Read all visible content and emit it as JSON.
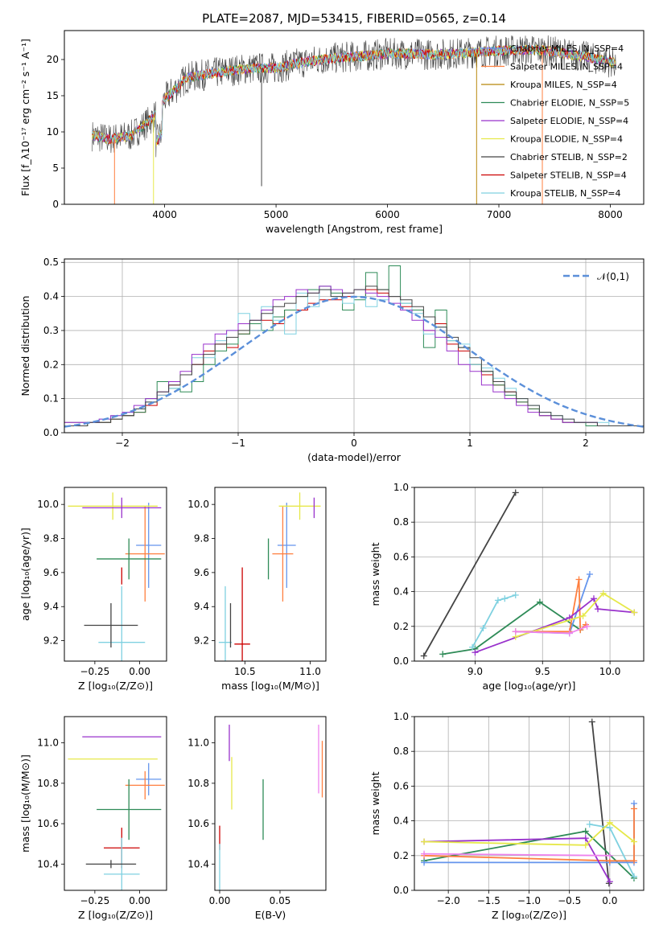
{
  "figure_title": "PLATE=2087, MJD=53415, FIBERID=0565, z=0.14",
  "colors": [
    "#6b8e23",
    "#3a6ea5"
  ],
  "chart_data": [
    {
      "id": "spectrum",
      "type": "line",
      "title": "PLATE=2087, MJD=53415, FIBERID=0565, z=0.14",
      "xlabel": "wavelength [Angstrom, rest frame]",
      "ylabel": "Flux [f_λ10⁻¹⁷ erg cm⁻² s⁻¹ A⁻¹]",
      "xlim": [
        3100,
        8300
      ],
      "ylim": [
        0,
        24
      ],
      "xticks": [
        4000,
        5000,
        6000,
        7000,
        8000
      ],
      "yticks": [
        0,
        5,
        10,
        15,
        20
      ],
      "grid": false,
      "legend_position": "top-right",
      "continuum_x": [
        3350,
        3500,
        3700,
        3900,
        4000,
        4200,
        4400,
        4600,
        4800,
        5000,
        5200,
        5400,
        5600,
        5800,
        6000,
        6200,
        6400,
        6600,
        6800,
        7000,
        7200,
        7400,
        7600,
        7800,
        8050
      ],
      "continuum_y": [
        9.5,
        9.0,
        9.5,
        12,
        14.5,
        17.5,
        18,
        18.5,
        18.8,
        18.8,
        19.5,
        20,
        20.3,
        20.5,
        20.8,
        20.8,
        20.7,
        20.8,
        21.0,
        21.2,
        21.3,
        21.3,
        20.8,
        20.3,
        19.5
      ],
      "series": [
        {
          "name": "Chabrier MILES, N_SSP=4",
          "color": "#6495ed"
        },
        {
          "name": "Salpeter MILES, N_SSP=4",
          "color": "#ff7f3f"
        },
        {
          "name": "Kroupa MILES, N_SSP=4",
          "color": "#b8860b"
        },
        {
          "name": "Chabrier ELODIE, N_SSP=5",
          "color": "#2e8b57"
        },
        {
          "name": "Salpeter ELODIE, N_SSP=4",
          "color": "#9932cc"
        },
        {
          "name": "Kroupa ELODIE, N_SSP=4",
          "color": "#e6e84a"
        },
        {
          "name": "Chabrier STELIB, N_SSP=2",
          "color": "#444444"
        },
        {
          "name": "Salpeter STELIB, N_SSP=4",
          "color": "#cc0000"
        },
        {
          "name": "Kroupa STELIB, N_SSP=4",
          "color": "#7fd1e0"
        }
      ]
    },
    {
      "id": "residuals",
      "type": "bar",
      "xlabel": "(data-model)/error",
      "ylabel": "Normed distribution",
      "xlim": [
        -2.5,
        2.5
      ],
      "ylim": [
        0,
        0.51
      ],
      "xticks": [
        -2,
        -1,
        0,
        1,
        2
      ],
      "yticks": [
        0.0,
        0.1,
        0.2,
        0.3,
        0.4,
        0.5
      ],
      "grid": true,
      "legend": "𝒩(0,1)",
      "legend_position": "top-right",
      "gaussian": {
        "mean": 0,
        "sigma": 1,
        "color": "#5b8fd9"
      },
      "bin_width": 0.1,
      "histograms": [
        {
          "color": "#cc0000",
          "values": [
            0.03,
            0.03,
            0.03,
            0.03,
            0.04,
            0.05,
            0.06,
            0.08,
            0.11,
            0.14,
            0.17,
            0.2,
            0.24,
            0.26,
            0.25,
            0.29,
            0.3,
            0.33,
            0.32,
            0.36,
            0.36,
            0.38,
            0.39,
            0.39,
            0.4,
            0.4,
            0.42,
            0.41,
            0.4,
            0.37,
            0.36,
            0.3,
            0.32,
            0.26,
            0.24,
            0.2,
            0.17,
            0.14,
            0.12,
            0.09,
            0.07,
            0.05,
            0.04,
            0.03,
            0.03,
            0.02,
            0.02,
            0.02,
            0.02,
            0.02
          ]
        },
        {
          "color": "#2e8b57",
          "values": [
            0.02,
            0.02,
            0.03,
            0.03,
            0.04,
            0.05,
            0.06,
            0.1,
            0.15,
            0.13,
            0.12,
            0.15,
            0.2,
            0.24,
            0.26,
            0.29,
            0.32,
            0.3,
            0.34,
            0.36,
            0.4,
            0.42,
            0.43,
            0.41,
            0.36,
            0.39,
            0.47,
            0.42,
            0.49,
            0.38,
            0.36,
            0.25,
            0.36,
            0.27,
            0.25,
            0.2,
            0.18,
            0.14,
            0.11,
            0.09,
            0.07,
            0.05,
            0.04,
            0.03,
            0.03,
            0.02,
            0.02,
            0.02,
            0.02,
            0.02
          ]
        },
        {
          "color": "#7fd1e0",
          "values": [
            0.03,
            0.03,
            0.03,
            0.04,
            0.05,
            0.06,
            0.07,
            0.09,
            0.11,
            0.13,
            0.17,
            0.22,
            0.22,
            0.27,
            0.3,
            0.35,
            0.3,
            0.37,
            0.33,
            0.29,
            0.41,
            0.37,
            0.42,
            0.4,
            0.38,
            0.4,
            0.37,
            0.39,
            0.4,
            0.38,
            0.35,
            0.29,
            0.31,
            0.27,
            0.26,
            0.2,
            0.19,
            0.16,
            0.13,
            0.1,
            0.08,
            0.06,
            0.05,
            0.04,
            0.03,
            0.03,
            0.03,
            0.02,
            0.02,
            0.02
          ]
        },
        {
          "color": "#9932cc",
          "values": [
            0.03,
            0.03,
            0.03,
            0.04,
            0.05,
            0.06,
            0.08,
            0.1,
            0.12,
            0.15,
            0.18,
            0.23,
            0.26,
            0.29,
            0.3,
            0.32,
            0.33,
            0.36,
            0.39,
            0.4,
            0.42,
            0.41,
            0.43,
            0.42,
            0.41,
            0.42,
            0.41,
            0.4,
            0.38,
            0.36,
            0.33,
            0.3,
            0.28,
            0.24,
            0.2,
            0.18,
            0.14,
            0.12,
            0.1,
            0.08,
            0.06,
            0.05,
            0.04,
            0.03,
            0.03,
            0.03,
            0.02,
            0.02,
            0.02,
            0.02
          ]
        },
        {
          "color": "#444444",
          "values": [
            0.02,
            0.02,
            0.03,
            0.03,
            0.04,
            0.05,
            0.07,
            0.09,
            0.12,
            0.14,
            0.17,
            0.2,
            0.23,
            0.26,
            0.28,
            0.3,
            0.33,
            0.35,
            0.37,
            0.38,
            0.4,
            0.41,
            0.42,
            0.4,
            0.41,
            0.42,
            0.43,
            0.42,
            0.4,
            0.39,
            0.37,
            0.34,
            0.31,
            0.28,
            0.25,
            0.22,
            0.18,
            0.15,
            0.12,
            0.1,
            0.08,
            0.06,
            0.05,
            0.04,
            0.03,
            0.03,
            0.02,
            0.02,
            0.02,
            0.02
          ]
        }
      ]
    },
    {
      "id": "age-vs-z",
      "type": "scatter",
      "xlabel": "Z [log₁₀(Z/Z⊙)]",
      "ylabel": "age  [log₁₀(age/yr)]",
      "xlim": [
        -0.42,
        0.15
      ],
      "ylim": [
        9.08,
        10.1
      ],
      "xticks": [
        -0.25,
        0.0
      ],
      "yticks": [
        9.2,
        9.4,
        9.6,
        9.8,
        10.0
      ],
      "grid": false,
      "errorbars": [
        {
          "color": "#6495ed",
          "x": 0.05,
          "y": 9.76,
          "xerr": 0.07,
          "yerr": 0.25
        },
        {
          "color": "#ff7f3f",
          "x": 0.03,
          "y": 9.71,
          "xerr": 0.11,
          "yerr": 0.28
        },
        {
          "color": "#e6e84a",
          "x": -0.15,
          "y": 9.99,
          "xerr": 0.25,
          "yerr": 0.08
        },
        {
          "color": "#9932cc",
          "x": -0.1,
          "y": 9.98,
          "xerr": 0.22,
          "yerr": 0.06
        },
        {
          "color": "#2e8b57",
          "x": -0.06,
          "y": 9.68,
          "xerr": 0.18,
          "yerr": 0.12
        },
        {
          "color": "#cc0000",
          "x": -0.1,
          "y": 9.58,
          "xerr": 0.0,
          "yerr": 0.05
        },
        {
          "color": "#7fd1e0",
          "x": -0.1,
          "y": 9.19,
          "xerr": 0.13,
          "yerr": 0.33
        },
        {
          "color": "#444444",
          "x": -0.16,
          "y": 9.29,
          "xerr": 0.15,
          "yerr": 0.13
        }
      ]
    },
    {
      "id": "age-vs-mass",
      "type": "scatter",
      "xlabel": "mass [log₁₀(M/M⊙)]",
      "ylabel": "",
      "xlim": [
        10.27,
        11.12
      ],
      "ylim": [
        9.08,
        10.1
      ],
      "xticks": [
        10.5,
        11.0
      ],
      "yticks": [
        9.2,
        9.4,
        9.6,
        9.8,
        10.0
      ],
      "grid": false,
      "errorbars": [
        {
          "color": "#6495ed",
          "x": 10.82,
          "y": 9.76,
          "xerr": 0.07,
          "yerr": 0.25
        },
        {
          "color": "#ff7f3f",
          "x": 10.79,
          "y": 9.71,
          "xerr": 0.08,
          "yerr": 0.28
        },
        {
          "color": "#e6e84a",
          "x": 10.92,
          "y": 9.99,
          "xerr": 0.16,
          "yerr": 0.08
        },
        {
          "color": "#9932cc",
          "x": 11.03,
          "y": 9.98,
          "xerr": 0.0,
          "yerr": 0.06
        },
        {
          "color": "#2e8b57",
          "x": 10.68,
          "y": 9.68,
          "xerr": 0.0,
          "yerr": 0.12
        },
        {
          "color": "#cc0000",
          "x": 10.48,
          "y": 9.18,
          "xerr": 0.06,
          "yerr": 0.45
        },
        {
          "color": "#7fd1e0",
          "x": 10.35,
          "y": 9.19,
          "xerr": 0.05,
          "yerr": 0.33
        },
        {
          "color": "#444444",
          "x": 10.39,
          "y": 9.29,
          "xerr": 0.0,
          "yerr": 0.13
        }
      ]
    },
    {
      "id": "weight-vs-age",
      "type": "line",
      "xlabel": "age  [log₁₀(age/yr)]",
      "ylabel": "mass weight",
      "xlim": [
        8.55,
        10.25
      ],
      "ylim": [
        0,
        1.0
      ],
      "xticks": [
        9.0,
        9.5,
        10.0
      ],
      "yticks": [
        0.0,
        0.2,
        0.4,
        0.6,
        0.8,
        1.0
      ],
      "grid": true,
      "series": [
        {
          "color": "#444444",
          "x": [
            8.62,
            9.3
          ],
          "y": [
            0.03,
            0.97
          ]
        },
        {
          "color": "#2e8b57",
          "x": [
            8.76,
            9.0,
            9.48,
            9.78
          ],
          "y": [
            0.04,
            0.07,
            0.34,
            0.18
          ]
        },
        {
          "color": "#7fd1e0",
          "x": [
            8.98,
            9.06,
            9.17,
            9.22,
            9.3
          ],
          "y": [
            0.08,
            0.19,
            0.35,
            0.36,
            0.38
          ]
        },
        {
          "color": "#6495ed",
          "x": [
            9.3,
            9.7,
            9.85
          ],
          "y": [
            0.17,
            0.16,
            0.5
          ]
        },
        {
          "color": "#ff7f3f",
          "x": [
            9.3,
            9.7,
            9.77,
            9.78,
            9.82
          ],
          "y": [
            0.17,
            0.17,
            0.47,
            0.18,
            0.21
          ]
        },
        {
          "color": "#9932cc",
          "x": [
            9.0,
            9.7,
            9.88,
            9.91,
            10.18
          ],
          "y": [
            0.05,
            0.25,
            0.36,
            0.3,
            0.28
          ]
        },
        {
          "color": "#e6e84a",
          "x": [
            9.3,
            9.8,
            9.95,
            10.18
          ],
          "y": [
            0.14,
            0.26,
            0.39,
            0.28
          ]
        },
        {
          "color": "#ee82ee",
          "x": [
            9.3,
            9.7,
            9.83
          ],
          "y": [
            0.17,
            0.16,
            0.2
          ]
        }
      ]
    },
    {
      "id": "mass-vs-z",
      "type": "scatter",
      "xlabel": "Z [log₁₀(Z/Z⊙)]",
      "ylabel": "mass [log₁₀(M/M⊙)]",
      "xlim": [
        -0.42,
        0.15
      ],
      "ylim": [
        10.27,
        11.13
      ],
      "xticks": [
        -0.25,
        0.0
      ],
      "yticks": [
        10.4,
        10.6,
        10.8,
        11.0
      ],
      "grid": false,
      "errorbars": [
        {
          "color": "#6495ed",
          "x": 0.05,
          "y": 10.82,
          "xerr": 0.07,
          "yerr": 0.08
        },
        {
          "color": "#ff7f3f",
          "x": 0.03,
          "y": 10.79,
          "xerr": 0.11,
          "yerr": 0.07
        },
        {
          "color": "#e6e84a",
          "x": -0.15,
          "y": 10.92,
          "xerr": 0.25,
          "yerr": 0.0
        },
        {
          "color": "#9932cc",
          "x": -0.1,
          "y": 11.03,
          "xerr": 0.22,
          "yerr": 0.0
        },
        {
          "color": "#2e8b57",
          "x": -0.06,
          "y": 10.67,
          "xerr": 0.18,
          "yerr": 0.15
        },
        {
          "color": "#cc0000",
          "x": -0.1,
          "y": 10.48,
          "xerr": 0.1,
          "yerr": 0.1
        },
        {
          "color": "#7fd1e0",
          "x": -0.1,
          "y": 10.35,
          "xerr": 0.1,
          "yerr": 0.18
        },
        {
          "color": "#444444",
          "x": -0.16,
          "y": 10.4,
          "xerr": 0.14,
          "yerr": 0.02
        }
      ]
    },
    {
      "id": "mass-vs-ebv",
      "type": "scatter",
      "xlabel": "E(B-V)",
      "ylabel": "",
      "xlim": [
        -0.004,
        0.088
      ],
      "ylim": [
        10.27,
        11.13
      ],
      "xticks": [
        0.0,
        0.05
      ],
      "yticks": [
        10.4,
        10.6,
        10.8,
        11.0
      ],
      "grid": false,
      "errorbars": [
        {
          "color": "#9932cc",
          "x": 0.008,
          "y": 11.0,
          "xerr": 0,
          "yerr": 0.09
        },
        {
          "color": "#e6e84a",
          "x": 0.01,
          "y": 10.8,
          "xerr": 0,
          "yerr": 0.13
        },
        {
          "color": "#2e8b57",
          "x": 0.036,
          "y": 10.67,
          "xerr": 0,
          "yerr": 0.15
        },
        {
          "color": "#cc0000",
          "x": 0.0,
          "y": 10.53,
          "xerr": 0,
          "yerr": 0.06
        },
        {
          "color": "#7fd1e0",
          "x": 0.0,
          "y": 10.38,
          "xerr": 0,
          "yerr": 0.12
        },
        {
          "color": "#ff7f3f",
          "x": 0.085,
          "y": 10.87,
          "xerr": 0,
          "yerr": 0.14
        },
        {
          "color": "#ee82ee",
          "x": 0.082,
          "y": 10.92,
          "xerr": 0,
          "yerr": 0.17
        }
      ]
    },
    {
      "id": "weight-vs-z",
      "type": "line",
      "xlabel": "Z [log₁₀(Z/Z⊙)]",
      "ylabel": "mass weight",
      "xlim": [
        -2.42,
        0.42
      ],
      "ylim": [
        0,
        1.0
      ],
      "xticks": [
        -2.0,
        -1.5,
        -1.0,
        -0.5,
        0.0
      ],
      "yticks": [
        0.0,
        0.2,
        0.4,
        0.6,
        0.8,
        1.0
      ],
      "grid": true,
      "series": [
        {
          "color": "#444444",
          "x": [
            -0.22,
            -0.01
          ],
          "y": [
            0.97,
            0.04
          ]
        },
        {
          "color": "#2e8b57",
          "x": [
            -2.3,
            -0.3,
            0.3
          ],
          "y": [
            0.17,
            0.34,
            0.07
          ]
        },
        {
          "color": "#7fd1e0",
          "x": [
            -0.25,
            0.0,
            0.3
          ],
          "y": [
            0.38,
            0.36,
            0.08
          ]
        },
        {
          "color": "#6495ed",
          "x": [
            -2.3,
            0.0,
            0.3,
            0.3
          ],
          "y": [
            0.16,
            0.16,
            0.16,
            0.5
          ]
        },
        {
          "color": "#ff7f3f",
          "x": [
            -2.3,
            0.0,
            0.3,
            0.3
          ],
          "y": [
            0.2,
            0.17,
            0.17,
            0.47
          ]
        },
        {
          "color": "#9932cc",
          "x": [
            -2.3,
            -0.3,
            0.0
          ],
          "y": [
            0.28,
            0.3,
            0.05
          ]
        },
        {
          "color": "#e6e84a",
          "x": [
            -2.3,
            -0.3,
            0.0,
            0.3
          ],
          "y": [
            0.28,
            0.26,
            0.39,
            0.28
          ]
        },
        {
          "color": "#ee82ee",
          "x": [
            -2.3,
            0.0
          ],
          "y": [
            0.21,
            0.2
          ]
        }
      ]
    }
  ]
}
